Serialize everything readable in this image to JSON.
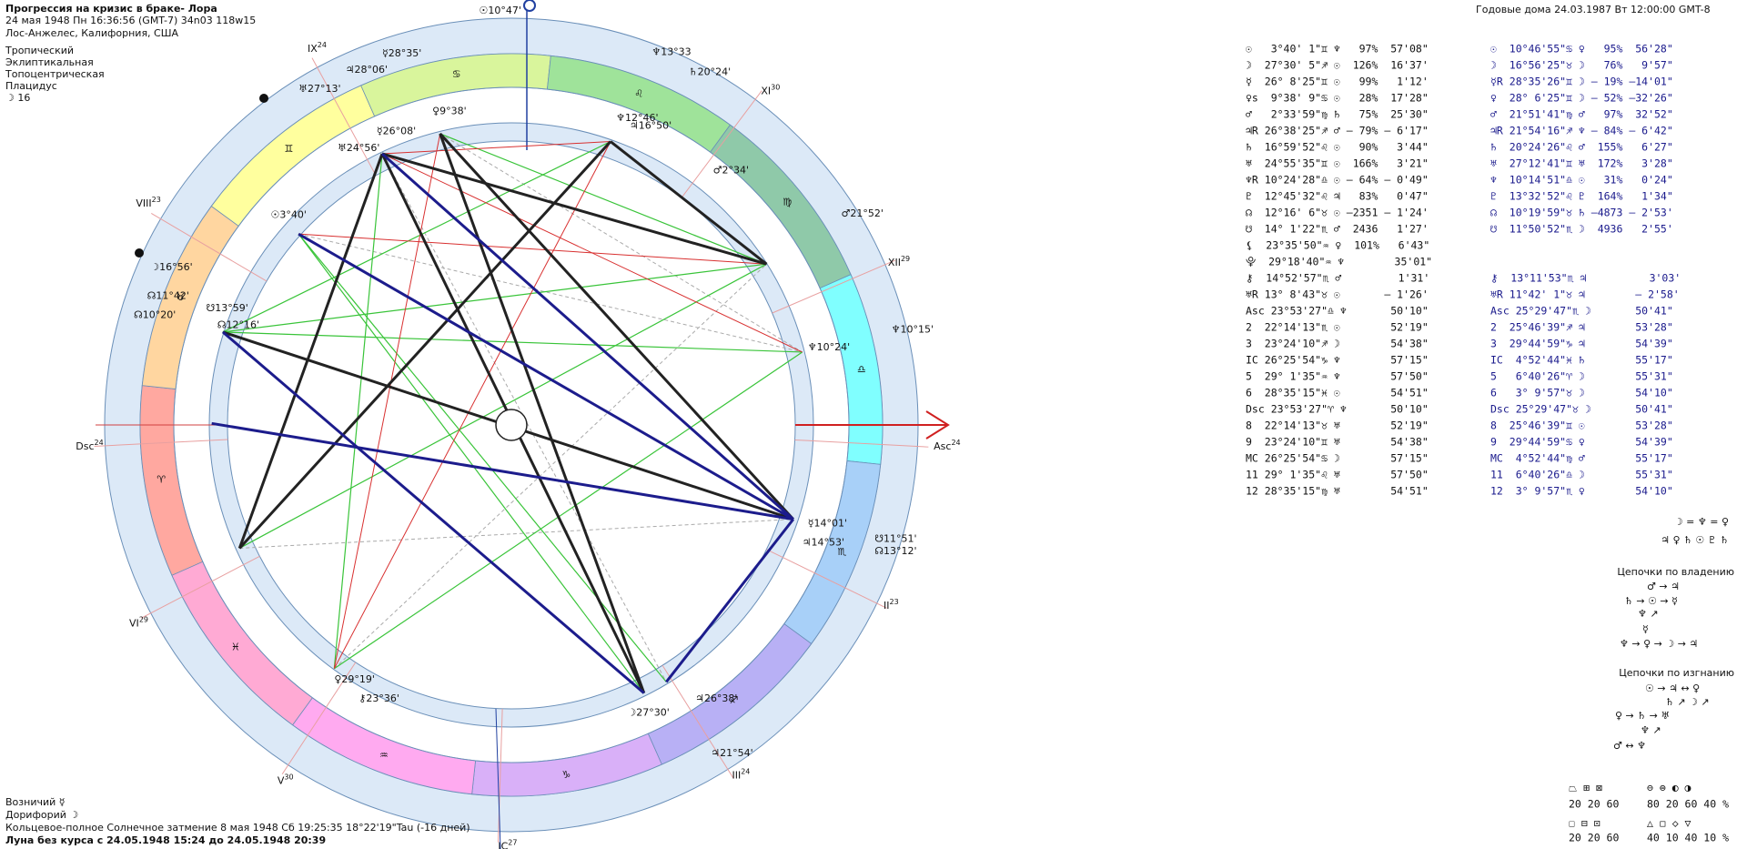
{
  "header": {
    "title": "Прогрессия на кризис в браке- Лора",
    "lines": [
      "24 мая 1948  Пн  16:36:56 (GMT-7) 34n03  118w15",
      "Лос-Анжелес, Калифорния, США"
    ],
    "settings": [
      "Тропический",
      "Эклиптикальная",
      "Топоцентрическая",
      "Плацидус",
      "☽  16"
    ]
  },
  "annual": "Годовые дома 24.03.1987  Вт 12:00:00 GMT-8",
  "wheel": {
    "zodiac": [
      "♈",
      "♉",
      "♊",
      "♋",
      "♌",
      "♍",
      "♎",
      "♏",
      "♐",
      "♑",
      "♒",
      "♓"
    ],
    "houses": [
      {
        "name": "VIII",
        "deg": "23"
      },
      {
        "name": "IX",
        "deg": "24"
      },
      {
        "name": "XI",
        "deg": "30"
      },
      {
        "name": "XII",
        "deg": "29"
      },
      {
        "name": "Asc",
        "deg": "24"
      },
      {
        "name": "II",
        "deg": "23"
      },
      {
        "name": "III",
        "deg": "24"
      },
      {
        "name": "IC",
        "deg": "27"
      },
      {
        "name": "V",
        "deg": "30"
      },
      {
        "name": "VI",
        "deg": "29"
      },
      {
        "name": "Dsc",
        "deg": "24"
      }
    ],
    "planets": [
      "☉10°47'",
      "☿28°35'",
      "♃28°06'",
      "♅27°13'",
      "♆13°33",
      "♄20°24'",
      "♀9°38'",
      "☿26°08'",
      "♅24°56'",
      "♆12°46'",
      "♃16°50'",
      "♂2°34'",
      "☉3°40'",
      "♂21°52'",
      "☽16°56'",
      "☊11°42'",
      "☊10°20'",
      "☋13°59'",
      "☊12°16'",
      "♆10°24'",
      "♆10°15'",
      "☿14°01'",
      "♃14°53'",
      "☋11°51'",
      "☊13°12'",
      "♃26°38'",
      "☽27°30'",
      "♃21°54'",
      "♀29°19'",
      "⚷23°36'"
    ]
  },
  "table": {
    "rows": [
      [
        "☉   3°40' 1\"♊ ♆   97%  57'08\"",
        "☉  10°46'55\"♋ ♀   95%  56'28\""
      ],
      [
        "☽  27°30' 5\"♐ ☉  126%  16'37'",
        "☽  16°56'25\"♉ ☽   76%   9'57\""
      ],
      [
        "☿  26° 8'25\"♊ ☉   99%   1'12'",
        "☿R 28°35'26\"♊ ☽ – 19% –14'01\""
      ],
      [
        "♀s  9°38' 9\"♋ ☉   28%  17'28\"",
        "♀  28° 6'25\"♊ ☽ – 52% –32'26\""
      ],
      [
        "♂   2°33'59\"♍ ♄   75%  25'30\"",
        "♂  21°51'41\"♍ ♂   97%  32'52\""
      ],
      [
        "♃R 26°38'25\"♐ ♂ – 79% – 6'17\"",
        "♃R 21°54'16\"♐ ♆ – 84% – 6'42\""
      ],
      [
        "♄  16°59'52\"♌ ☉   90%   3'44\"",
        "♄  20°24'26\"♌ ♂  155%   6'27\""
      ],
      [
        "♅  24°55'35\"♊ ☉  166%   3'21\"",
        "♅  27°12'41\"♊ ♅  172%   3'28\""
      ],
      [
        "♆R 10°24'28\"♎ ☉ – 64% – 0'49\"",
        "♆  10°14'51\"♎ ☉   31%   0'24\""
      ],
      [
        "♇  12°45'32\"♌ ♃   83%   0'47\"",
        "♇  13°32'52\"♌ ♇  164%   1'34\""
      ],
      [
        "☊  12°16' 6\"♉ ☉ –2351 – 1'24'",
        "☊  10°19'59\"♉ ♄ –4873 – 2'53'"
      ],
      [
        "☋  14° 1'22\"♏ ♂  2436   1'27'",
        "☋  11°50'52\"♏ ☽  4936   2'55'"
      ],
      [
        "⚸  23°35'50\"♒ ♀  101%   6'43\""
      ],
      [
        "⯓  29°18'40\"♒ ♆        35'01\""
      ],
      [
        "⚷  14°52'57\"♏ ♂         1'31'",
        "⚷  13°11'53\"♏ ♃          3'03'"
      ],
      [
        "♅R 13° 8'43\"♉ ☉       – 1'26'",
        "♅R 11°42' 1\"♉ ♃        – 2'58'"
      ],
      [
        "Asc 23°53'27\"♎ ♆       50'10\"",
        "Asc 25°29'47\"♏ ☽       50'41\""
      ],
      [
        "2  22°14'13\"♏ ☉        52'19\"",
        "2  25°46'39\"♐ ♃        53'28\""
      ],
      [
        "3  23°24'10\"♐ ☽        54'38\"",
        "3  29°44'59\"♑ ♃        54'39\""
      ],
      [
        "IC 26°25'54\"♑ ♆        57'15\"",
        "IC  4°52'44\"♓ ♄        55'17\""
      ],
      [
        "5  29° 1'35\"♒ ♆        57'50\"",
        "5   6°40'26\"♈ ☽        55'31\""
      ],
      [
        "6  28°35'15\"♓ ☉        54'51\"",
        "6   3° 9'57\"♉ ☽        54'10\""
      ],
      [
        "Dsc 23°53'27\"♈ ♆       50'10\"",
        "Dsc 25°29'47\"♉ ☽       50'41\""
      ],
      [
        "8  22°14'13\"♉ ♅        52'19\"",
        "8  25°46'39\"♊ ☉        53'28\""
      ],
      [
        "9  23°24'10\"♊ ♅        54'38\"",
        "9  29°44'59\"♋ ♀        54'39\""
      ],
      [
        "MC 26°25'54\"♋ ☽        57'15\"",
        "MC  4°52'44\"♍ ♂        55'17\""
      ],
      [
        "11 29° 1'35\"♌ ♅        57'50\"",
        "11  6°40'26\"♎ ☽        55'31\""
      ],
      [
        "12 28°35'15\"♍ ♅        54'51\"",
        "12  3° 9'57\"♏ ♀        54'10\""
      ]
    ]
  },
  "chains": {
    "equal": "☽ = ♆ = ♀",
    "rulers": "♃ ♀ ♄ ☉ ♇ ♄",
    "ownership_title": "Цепочки по владению",
    "ownership": [
      "♂ → ♃",
      "♄ → ☉ → ☿",
      "♆ ↗",
      "☿",
      "♆ → ♀ → ☽ → ♃"
    ],
    "exile_title": "Цепочки по изгнанию",
    "exile": [
      "☉ → ♃ ↔ ♀",
      "♄ ↗ ☽ ↗",
      "♀ → ♄ → ♅",
      "♆ ↗",
      "♂ ↔ ♆"
    ]
  },
  "stats": {
    "row1_glyphs_a": "⏢ ⊞ ⊠",
    "row1_values_a": "20 20 60",
    "row1_glyphs_b": "⊖ ⊜ ◐ ◑",
    "row1_values_b": "80 20 60 40 %",
    "row2_glyphs_a": "☐ ⊟ ⊡",
    "row2_values_a": "20 20 60",
    "row2_glyphs_b": "△ ◻ ◇ ▽",
    "row2_values_b": "40 10 40 10 %"
  },
  "footer": [
    "Возничий ☿",
    "Дорифорий ☽",
    "Кольцевое-полное Солнечное затмение 8 мая 1948 Сб 19:25:35 18°22'19\"Tau (-16 дней)",
    "Луна без курса с 24.05.1948 15:24 до 24.05.1948 20:39"
  ]
}
